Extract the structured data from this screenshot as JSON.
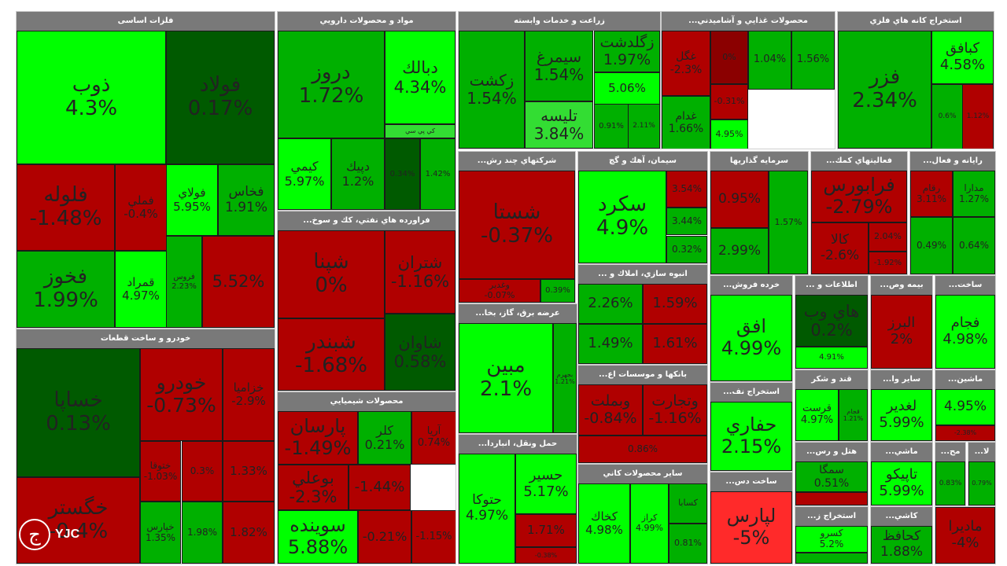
{
  "colors": {
    "up_strong": "#00ff00",
    "up_mid": "#00b000",
    "up_light": "#33dd33",
    "neutral": "#005a00",
    "down_mid": "#b00000",
    "down_dark": "#8b0000",
    "down_strong": "#ff2a2a",
    "header_bg": "#797979",
    "header_text": "#ffffff"
  },
  "logo": {
    "text": "YJC",
    "glyph": "ج"
  },
  "sectors": [
    {
      "id": "s1",
      "title": "فلزات اساسی",
      "tiles": [
        {
          "sym": "ذوب",
          "pct": "4.3%",
          "tone": "up_strong"
        },
        {
          "sym": "فولاد",
          "pct": "0.17%",
          "tone": "neutral"
        },
        {
          "sym": "فلوله",
          "pct": "-1.48%",
          "tone": "down_mid"
        },
        {
          "sym": "فملي",
          "pct": "-0.4%",
          "tone": "down_mid"
        },
        {
          "sym": "فولاي",
          "pct": "5.95%",
          "tone": "up_strong"
        },
        {
          "sym": "فخاس",
          "pct": "1.91%",
          "tone": "up_mid"
        },
        {
          "sym": "فخوز",
          "pct": "1.99%",
          "tone": "up_mid"
        },
        {
          "sym": "قمراد",
          "pct": "4.97%",
          "tone": "up_strong"
        },
        {
          "sym": "فروس",
          "pct": "2.23%",
          "tone": "up_mid"
        },
        {
          "sym": "",
          "pct": "5.52%",
          "tone": "down_mid"
        }
      ]
    },
    {
      "id": "s2",
      "title": "مواد و محصولات دارويي",
      "tiles": [
        {
          "sym": "دروز",
          "pct": "1.72%",
          "tone": "up_mid"
        },
        {
          "sym": "دبالك",
          "pct": "4.34%",
          "tone": "up_strong"
        },
        {
          "sym": "كي پي سي",
          "pct": "",
          "tone": "up_light"
        },
        {
          "sym": "كيمي",
          "pct": "5.97%",
          "tone": "up_strong"
        },
        {
          "sym": "دپيك",
          "pct": "1.2%",
          "tone": "up_mid"
        },
        {
          "sym": "",
          "pct": "0.34%",
          "tone": "neutral"
        },
        {
          "sym": "",
          "pct": "1.42%",
          "tone": "up_mid"
        }
      ]
    },
    {
      "id": "s3",
      "title": "زراعت و خدمات وابسته",
      "tiles": [
        {
          "sym": "زكشت",
          "pct": "1.54%",
          "tone": "up_mid"
        },
        {
          "sym": "سيمرغ",
          "pct": "1.54%",
          "tone": "up_mid"
        },
        {
          "sym": "زگلدشت",
          "pct": "1.97%",
          "tone": "up_mid"
        },
        {
          "sym": "",
          "pct": "5.06%",
          "tone": "up_strong"
        },
        {
          "sym": "تليسه",
          "pct": "3.84%",
          "tone": "up_light"
        },
        {
          "sym": "",
          "pct": "0.91%",
          "tone": "up_mid"
        },
        {
          "sym": "",
          "pct": "2.11%",
          "tone": "up_mid"
        }
      ]
    },
    {
      "id": "s4",
      "title": "محصولات غذايي و آشاميدني...",
      "tiles": [
        {
          "sym": "غگل",
          "pct": "-2.3%",
          "tone": "down_mid"
        },
        {
          "sym": "",
          "pct": "0%",
          "tone": "down_dark"
        },
        {
          "sym": "غدام",
          "pct": "1.66%",
          "tone": "up_mid"
        },
        {
          "sym": "",
          "pct": "-0.31%",
          "tone": "down_mid"
        },
        {
          "sym": "",
          "pct": "4.95%",
          "tone": "up_strong"
        },
        {
          "sym": "",
          "pct": "1.04%",
          "tone": "up_mid"
        },
        {
          "sym": "",
          "pct": "1.56%",
          "tone": "up_mid"
        }
      ]
    },
    {
      "id": "s5",
      "title": "استخراج کانه هاي فلزي",
      "tiles": [
        {
          "sym": "فزر",
          "pct": "2.34%",
          "tone": "up_mid"
        },
        {
          "sym": "كبافق",
          "pct": "4.58%",
          "tone": "up_strong"
        },
        {
          "sym": "",
          "pct": "0.6%",
          "tone": "up_mid"
        },
        {
          "sym": "",
          "pct": "1.12%",
          "tone": "down_mid"
        }
      ]
    },
    {
      "id": "s6",
      "title": "شرکتهاي چند رش...",
      "tiles": [
        {
          "sym": "شستا",
          "pct": "-0.37%",
          "tone": "down_mid"
        },
        {
          "sym": "وغدير",
          "pct": "-0.07%",
          "tone": "down_mid"
        },
        {
          "sym": "",
          "pct": "0.39%",
          "tone": "up_mid"
        }
      ]
    },
    {
      "id": "s7",
      "title": "سيمان، آهك و گچ",
      "tiles": [
        {
          "sym": "سكرد",
          "pct": "4.9%",
          "tone": "up_strong"
        },
        {
          "sym": "",
          "pct": "3.54%",
          "tone": "down_mid"
        },
        {
          "sym": "",
          "pct": "3.44%",
          "tone": "up_mid"
        },
        {
          "sym": "",
          "pct": "0.32%",
          "tone": "up_mid"
        }
      ]
    },
    {
      "id": "s8",
      "title": "سرمايه گذاريها",
      "tiles": [
        {
          "sym": "",
          "pct": "0.95%",
          "tone": "down_mid"
        },
        {
          "sym": "",
          "pct": "2.99%",
          "tone": "up_mid"
        },
        {
          "sym": "",
          "pct": "1.57%",
          "tone": "up_mid"
        }
      ]
    },
    {
      "id": "s9",
      "title": "فعاليتهاي كمك...",
      "tiles": [
        {
          "sym": "فرابورس",
          "pct": "-2.79%",
          "tone": "down_mid"
        },
        {
          "sym": "كالا",
          "pct": "-2.6%",
          "tone": "down_mid"
        },
        {
          "sym": "",
          "pct": "2.04%",
          "tone": "down_mid"
        },
        {
          "sym": "",
          "pct": "-1.92%",
          "tone": "down_mid"
        }
      ]
    },
    {
      "id": "s10",
      "title": "رايانه و فعال...",
      "tiles": [
        {
          "sym": "مدارا",
          "pct": "1.27%",
          "tone": "up_mid"
        },
        {
          "sym": "رقام",
          "pct": "3.11%",
          "tone": "down_mid"
        },
        {
          "sym": "",
          "pct": "0.49%",
          "tone": "up_mid"
        },
        {
          "sym": "",
          "pct": "0.64%",
          "tone": "up_mid"
        }
      ]
    },
    {
      "id": "s11",
      "title": "فراورده هاي نفتي، كك و سوخ...",
      "tiles": [
        {
          "sym": "شپنا",
          "pct": "0%",
          "tone": "down_mid"
        },
        {
          "sym": "شتران",
          "pct": "-1.16%",
          "tone": "down_mid"
        },
        {
          "sym": "شبندر",
          "pct": "-1.68%",
          "tone": "down_mid"
        },
        {
          "sym": "شاوان",
          "pct": "0.58%",
          "tone": "neutral"
        }
      ]
    },
    {
      "id": "s12",
      "title": "عرضه برق، گاز، بخا...",
      "tiles": [
        {
          "sym": "مبين",
          "pct": "2.1%",
          "tone": "up_strong"
        },
        {
          "sym": "بجهرم",
          "pct": "1.21%",
          "tone": "up_mid"
        }
      ]
    },
    {
      "id": "s13",
      "title": "انبوه سازي، املاك و ...",
      "tiles": [
        {
          "sym": "",
          "pct": "2.26%",
          "tone": "up_mid"
        },
        {
          "sym": "",
          "pct": "1.49%",
          "tone": "up_mid"
        },
        {
          "sym": "",
          "pct": "1.59%",
          "tone": "down_mid"
        },
        {
          "sym": "",
          "pct": "1.61%",
          "tone": "down_mid"
        }
      ]
    },
    {
      "id": "s14",
      "title": "خرده فروش...",
      "tiles": [
        {
          "sym": "افق",
          "pct": "4.99%",
          "tone": "up_strong"
        }
      ]
    },
    {
      "id": "s15",
      "title": "اطلاعات و ...",
      "tiles": [
        {
          "sym": "هاي وب",
          "pct": "0.2%",
          "tone": "neutral"
        },
        {
          "sym": "",
          "pct": "4.91%",
          "tone": "up_strong"
        }
      ]
    },
    {
      "id": "s16",
      "title": "بيمه وص...",
      "tiles": [
        {
          "sym": "البرز",
          "pct": "2%",
          "tone": "down_mid"
        }
      ]
    },
    {
      "id": "s17",
      "title": "ساخت...",
      "tiles": [
        {
          "sym": "فجام",
          "pct": "4.98%",
          "tone": "up_strong"
        }
      ]
    },
    {
      "id": "s18",
      "title": "بانكها و موسسات اع...",
      "tiles": [
        {
          "sym": "وبملت",
          "pct": "-0.84%",
          "tone": "down_mid"
        },
        {
          "sym": "وتجارت",
          "pct": "-1.16%",
          "tone": "down_mid"
        },
        {
          "sym": "",
          "pct": "0.86%",
          "tone": "down_mid"
        }
      ]
    },
    {
      "id": "s19",
      "title": "استخراج نف...",
      "tiles": [
        {
          "sym": "حفاري",
          "pct": "2.15%",
          "tone": "up_strong"
        }
      ]
    },
    {
      "id": "s20",
      "title": "قند و شكر",
      "tiles": [
        {
          "sym": "قرست",
          "pct": "4.97%",
          "tone": "up_strong"
        },
        {
          "sym": "قجام",
          "pct": "1.21%",
          "tone": "up_mid"
        }
      ]
    },
    {
      "id": "s21",
      "title": "ساير وا...",
      "tiles": [
        {
          "sym": "لغدير",
          "pct": "5.99%",
          "tone": "up_strong"
        }
      ]
    },
    {
      "id": "s22",
      "title": "ماشين...",
      "tiles": [
        {
          "sym": "",
          "pct": "4.95%",
          "tone": "up_strong"
        },
        {
          "sym": "",
          "pct": "-2.38%",
          "tone": "down_mid"
        }
      ]
    },
    {
      "id": "s23",
      "title": "محصولات شيميايي",
      "tiles": [
        {
          "sym": "پارسان",
          "pct": "-1.49%",
          "tone": "down_mid"
        },
        {
          "sym": "كلر",
          "pct": "0.21%",
          "tone": "up_mid"
        },
        {
          "sym": "آريا",
          "pct": "0.74%",
          "tone": "down_mid"
        },
        {
          "sym": "بوعلي",
          "pct": "-2.3%",
          "tone": "down_mid"
        },
        {
          "sym": "",
          "pct": "-1.44%",
          "tone": "down_mid"
        },
        {
          "sym": "سوينده",
          "pct": "5.88%",
          "tone": "up_strong"
        },
        {
          "sym": "",
          "pct": "-0.21%",
          "tone": "down_mid"
        },
        {
          "sym": "",
          "pct": "-1.15%",
          "tone": "down_mid"
        }
      ]
    },
    {
      "id": "s24",
      "title": "حمل ونقل، انباردا...",
      "tiles": [
        {
          "sym": "حتوكا",
          "pct": "4.97%",
          "tone": "up_strong"
        },
        {
          "sym": "حسير",
          "pct": "5.17%",
          "tone": "up_strong"
        },
        {
          "sym": "",
          "pct": "1.71%",
          "tone": "down_mid"
        },
        {
          "sym": "",
          "pct": "-0.38%",
          "tone": "down_mid"
        }
      ]
    },
    {
      "id": "s25",
      "title": "ساير محصولات كاني",
      "tiles": [
        {
          "sym": "كخاك",
          "pct": "4.98%",
          "tone": "up_strong"
        },
        {
          "sym": "كراز",
          "pct": "4.99%",
          "tone": "up_strong"
        },
        {
          "sym": "كسابا",
          "pct": "",
          "tone": "up_mid"
        },
        {
          "sym": "",
          "pct": "0.81%",
          "tone": "up_mid"
        }
      ]
    },
    {
      "id": "s26",
      "title": "ساخت دس...",
      "tiles": [
        {
          "sym": "لپارس",
          "pct": "-5%",
          "tone": "down_strong"
        }
      ]
    },
    {
      "id": "s27",
      "title": "هتل و رس...",
      "tiles": [
        {
          "sym": "سمگا",
          "pct": "0.51%",
          "tone": "up_mid"
        },
        {
          "sym": "",
          "pct": "",
          "tone": "down_mid"
        }
      ]
    },
    {
      "id": "s28",
      "title": "ماشي...",
      "tiles": [
        {
          "sym": "تاپيكو",
          "pct": "5.99%",
          "tone": "up_strong"
        }
      ]
    },
    {
      "id": "s29",
      "title": "استخراج ز...",
      "tiles": [
        {
          "sym": "كسرو",
          "pct": "5.2%",
          "tone": "up_strong"
        },
        {
          "sym": "",
          "pct": "",
          "tone": "up_mid"
        }
      ]
    },
    {
      "id": "s30",
      "title": "كاشي...",
      "tiles": [
        {
          "sym": "كحافظ",
          "pct": "1.88%",
          "tone": "up_mid"
        }
      ]
    },
    {
      "id": "s31",
      "title": "خودرو و ساخت قطعات",
      "tiles": [
        {
          "sym": "خساپا",
          "pct": "0.13%",
          "tone": "neutral"
        },
        {
          "sym": "خودرو",
          "pct": "-0.73%",
          "tone": "down_mid"
        },
        {
          "sym": "خزاميا",
          "pct": "-2.9%",
          "tone": "down_mid"
        },
        {
          "sym": "ختوقا",
          "pct": "-1.03%",
          "tone": "down_mid"
        },
        {
          "sym": "",
          "pct": "0.3%",
          "tone": "down_mid"
        },
        {
          "sym": "",
          "pct": "1.33%",
          "tone": "down_mid"
        },
        {
          "sym": "خگستر",
          "pct": "-0.4%",
          "tone": "down_mid"
        },
        {
          "sym": "خپارس",
          "pct": "1.35%",
          "tone": "up_mid"
        },
        {
          "sym": "",
          "pct": "1.98%",
          "tone": "up_mid"
        },
        {
          "sym": "",
          "pct": "1.82%",
          "tone": "down_mid"
        }
      ]
    },
    {
      "id": "s32",
      "title": "مح...",
      "tiles": [
        {
          "sym": "",
          "pct": "0.83%",
          "tone": "up_mid"
        }
      ]
    },
    {
      "id": "s33",
      "title": "لا...",
      "tiles": [
        {
          "sym": "",
          "pct": "0.79%",
          "tone": "up_mid"
        }
      ]
    },
    {
      "id": "s34",
      "title": "",
      "tiles": [
        {
          "sym": "ماديرا",
          "pct": "-4%",
          "tone": "down_mid"
        }
      ]
    }
  ]
}
